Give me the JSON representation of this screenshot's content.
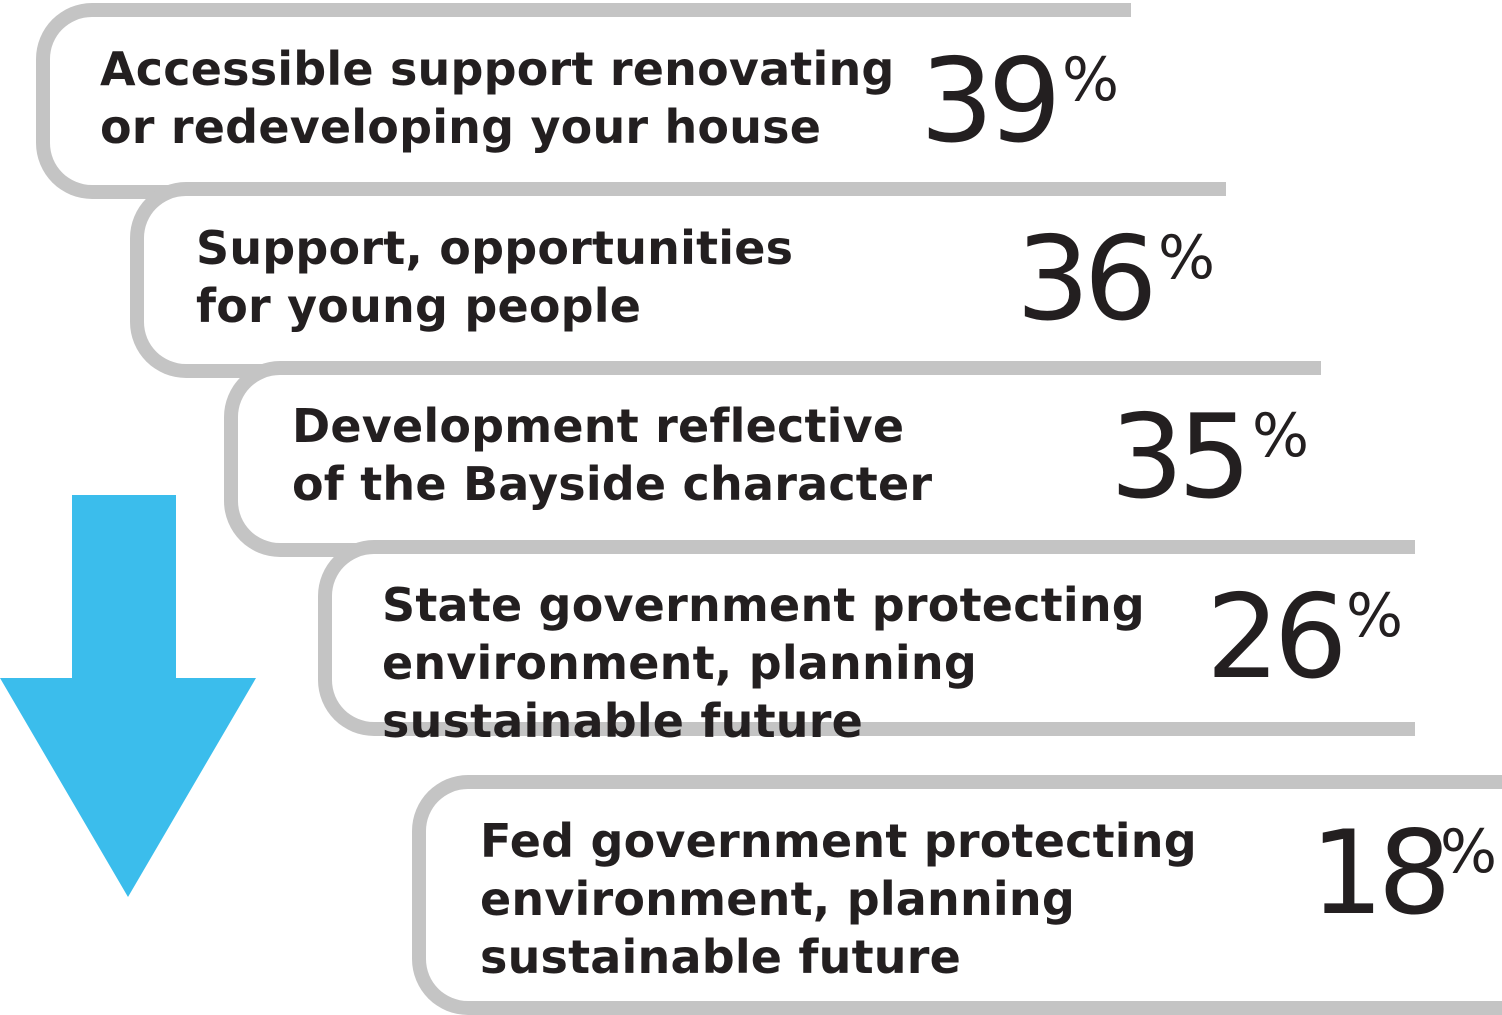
{
  "steps": [
    {
      "label": "Accessible support renovating\nor redeveloping your house",
      "value": 39,
      "value_text": "39",
      "unit": "%"
    },
    {
      "label": "Support, opportunities\nfor young people",
      "value": 36,
      "value_text": "36",
      "unit": "%"
    },
    {
      "label": "Development reflective\nof the Bayside character",
      "value": 35,
      "value_text": "35",
      "unit": "%"
    },
    {
      "label": "State government protecting\nenvironment, planning\nsustainable future",
      "value": 26,
      "value_text": "26",
      "unit": "%"
    },
    {
      "label": "Fed government protecting\nenvironment, planning\nsustainable future",
      "value": 18,
      "value_text": "18",
      "unit": "%"
    }
  ],
  "arrow": {
    "icon": "down-arrow-icon",
    "color": "#3bbdec"
  },
  "colors": {
    "frame": "#c4c4c4",
    "text": "#231f20"
  }
}
